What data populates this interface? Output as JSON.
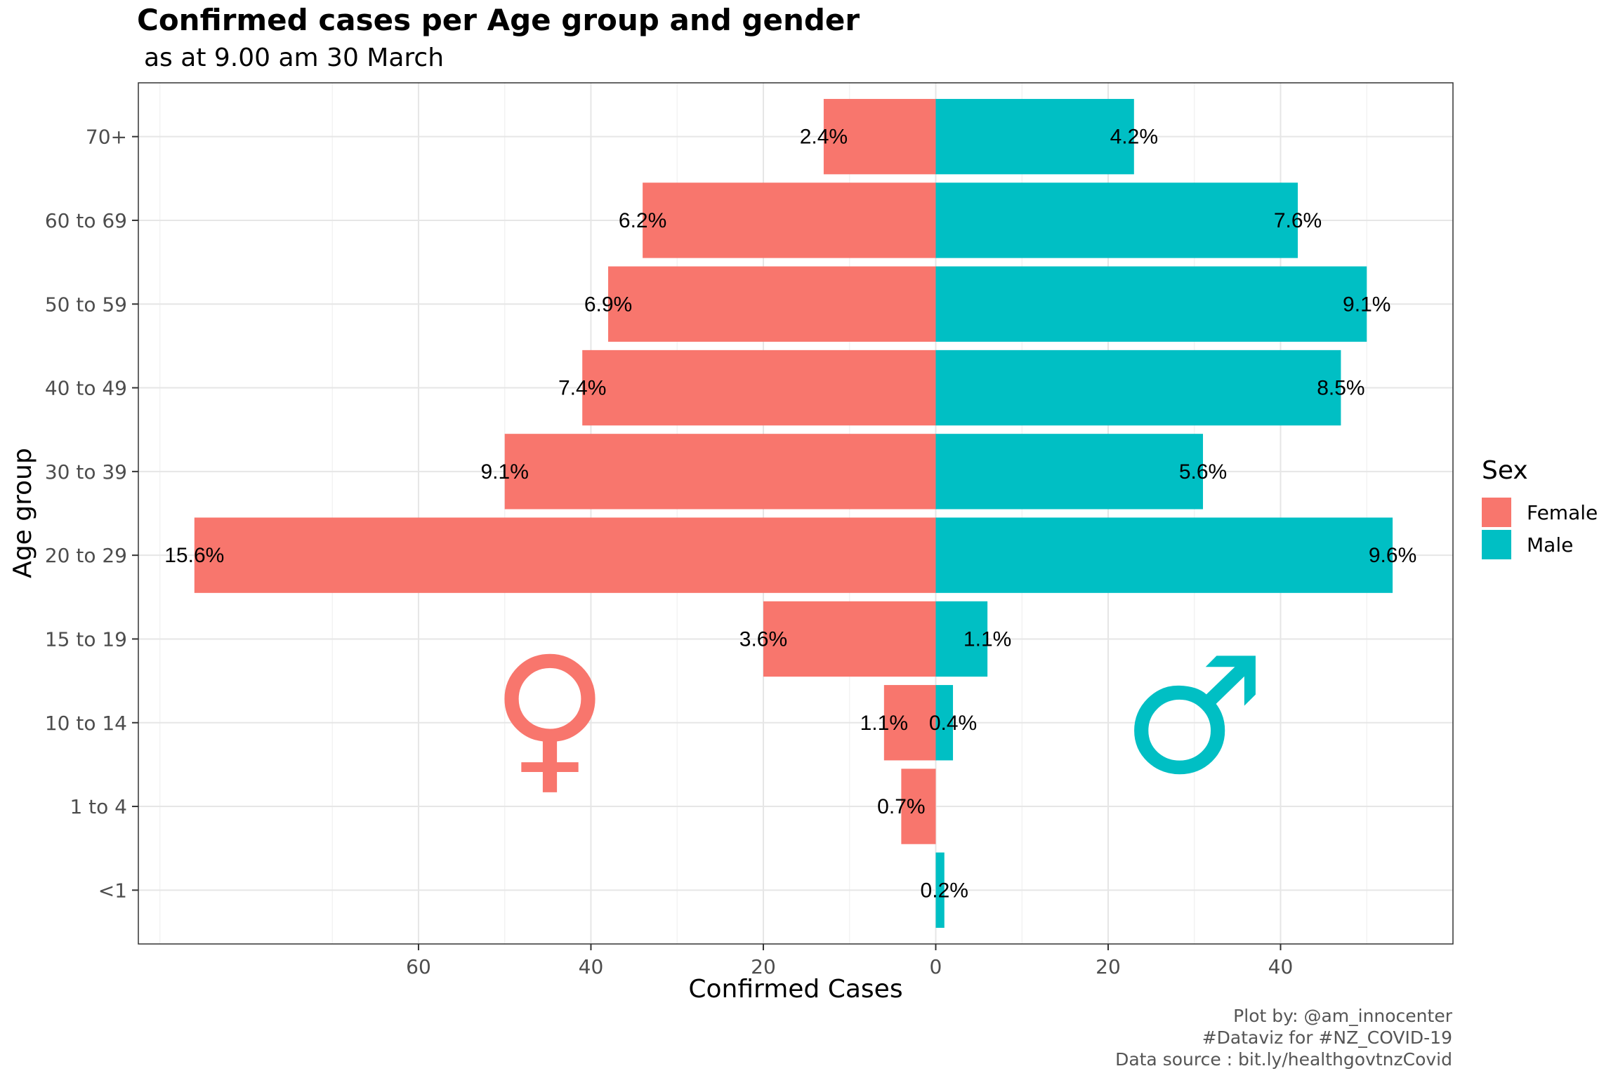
{
  "title": "Confirmed cases per Age group and gender",
  "subtitle": " as at 9.00 am 30 March",
  "legend": {
    "title": "Sex",
    "items": [
      {
        "label": "Female",
        "color": "#F8766D"
      },
      {
        "label": "Male",
        "color": "#00BFC4"
      }
    ]
  },
  "caption": [
    "Plot by: @am_innocenter",
    "#Dataviz for #NZ_COVID-19",
    "Data source : bit.ly/healthgovtnzCovid"
  ],
  "symbols": {
    "female": {
      "glyph": "♀",
      "color": "#F8766D"
    },
    "male": {
      "glyph": "♂",
      "color": "#00BFC4"
    }
  },
  "chart_data": {
    "type": "bar",
    "orientation": "horizontal-population-pyramid",
    "xlabel": "Confirmed Cases",
    "ylabel": "Age group",
    "xlim": [
      -92.5,
      60
    ],
    "x_ticks": [
      -60,
      -40,
      -20,
      0,
      20,
      40
    ],
    "x_tick_labels": [
      "60",
      "40",
      "20",
      "0",
      "20",
      "40"
    ],
    "categories": [
      "<1",
      "1 to 4",
      "10 to 14",
      "15 to 19",
      "20 to 29",
      "30 to 39",
      "40 to 49",
      "50 to 59",
      "60 to 69",
      "70+"
    ],
    "series": [
      {
        "name": "Female",
        "color": "#F8766D",
        "values": [
          0,
          4,
          6,
          20,
          86,
          50,
          41,
          38,
          34,
          13
        ],
        "labels": [
          "",
          "0.7%",
          "1.1%",
          "3.6%",
          "15.6%",
          "9.1%",
          "7.4%",
          "6.9%",
          "6.2%",
          "2.4%"
        ]
      },
      {
        "name": "Male",
        "color": "#00BFC4",
        "values": [
          1,
          0,
          2,
          6,
          53,
          31,
          47,
          50,
          42,
          23
        ],
        "labels": [
          "0.2%",
          "",
          "0.4%",
          "1.1%",
          "9.6%",
          "5.6%",
          "8.5%",
          "9.1%",
          "7.6%",
          "4.2%"
        ]
      }
    ],
    "grid": true,
    "legend_position": "right"
  }
}
